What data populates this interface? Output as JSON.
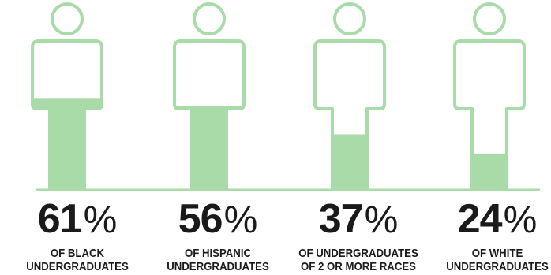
{
  "chart_data": {
    "type": "pictograph",
    "colors": {
      "fill": "#a8dba8",
      "outline": "#a8dba8",
      "baseline": "#a8dba8",
      "text": "#1a1a1a"
    },
    "series": [
      {
        "value": 61,
        "value_text": "61",
        "unit": "%",
        "label_line1": "OF BLACK",
        "label_line2": "UNDERGRADUATES"
      },
      {
        "value": 56,
        "value_text": "56",
        "unit": "%",
        "label_line1": "OF HISPANIC",
        "label_line2": "UNDERGRADUATES"
      },
      {
        "value": 37,
        "value_text": "37",
        "unit": "%",
        "label_line1": "OF UNDERGRADUATES",
        "label_line2": "OF 2 OR MORE RACES"
      },
      {
        "value": 24,
        "value_text": "24",
        "unit": "%",
        "label_line1": "OF WHITE",
        "label_line2": "UNDERGRADUATES"
      }
    ]
  }
}
